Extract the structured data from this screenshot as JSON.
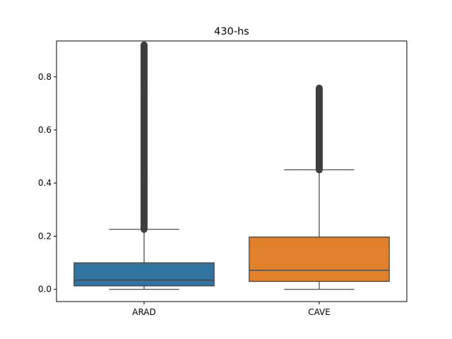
{
  "chart_data": {
    "type": "box",
    "title": "430-hs",
    "xlabel": "",
    "ylabel": "",
    "categories": [
      "ARAD",
      "CAVE"
    ],
    "ylim": [
      -0.046,
      0.935
    ],
    "yticks": [
      0.0,
      0.2,
      0.4,
      0.6,
      0.8
    ],
    "ytick_labels": [
      "0.0",
      "0.2",
      "0.4",
      "0.6",
      "0.8"
    ],
    "grid": false,
    "boxes": [
      {
        "name": "ARAD",
        "color": "#3274a1",
        "whisker_low": 0.0,
        "q1": 0.013,
        "median": 0.035,
        "q3": 0.1,
        "whisker_high": 0.226,
        "outliers_from": 0.226,
        "outliers_to": 0.92
      },
      {
        "name": "CAVE",
        "color": "#e1812c",
        "whisker_low": 0.0,
        "q1": 0.03,
        "median": 0.072,
        "q3": 0.197,
        "whisker_high": 0.45,
        "outliers_from": 0.45,
        "outliers_to": 0.758
      }
    ]
  }
}
